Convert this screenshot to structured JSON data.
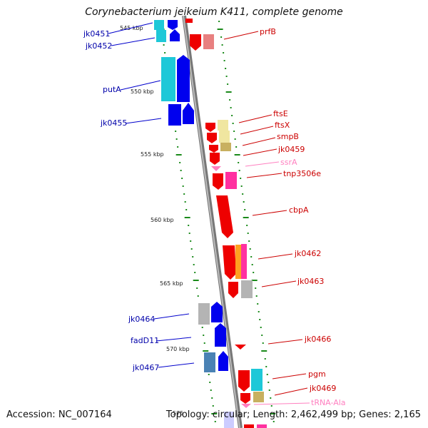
{
  "title": "Corynebacterium jeikeium K411, complete genome",
  "accession_text": "Accession: NC_007164",
  "topology_text": "Topology: circular; Length: 2,462,499 bp; Genes: 2,165",
  "ruler_labels": [
    "545 kbp",
    "550 kbp",
    "555 kbp",
    "560 kbp",
    "565 kbp",
    "570 kbp",
    "575"
  ],
  "minus_labels": [
    "jk0451",
    "jk0452",
    "putA",
    "jk0455",
    "jk0464",
    "fadD11",
    "jk0467"
  ],
  "plus_labels": [
    "prfB",
    "ftsE",
    "ftsX",
    "smpB",
    "jk0459",
    "ssrA",
    "tnp3506e",
    "cbpA",
    "jk0462",
    "jk0463",
    "jk0466",
    "pgm",
    "jk0469",
    "tRNA-Ala"
  ],
  "colors": {
    "minus_gene": "#0000ee",
    "minus_label": "#0000aa",
    "plus_gene": "#ee0000",
    "plus_label": "#cc0000",
    "rna_label": "#ff80c0",
    "backbone": "#888888",
    "ticks": "#1a8a1a",
    "cyan_cog": "#1ec8d8",
    "yellow_cog": "#f0e6a0",
    "tan_cog": "#c8b060",
    "pink_cog": "#ff30a0",
    "orange_cog": "#ffa020",
    "grey_cog": "#b4b4b4",
    "salmon_cog": "#e88080",
    "steel_cog": "#4a82b4"
  }
}
